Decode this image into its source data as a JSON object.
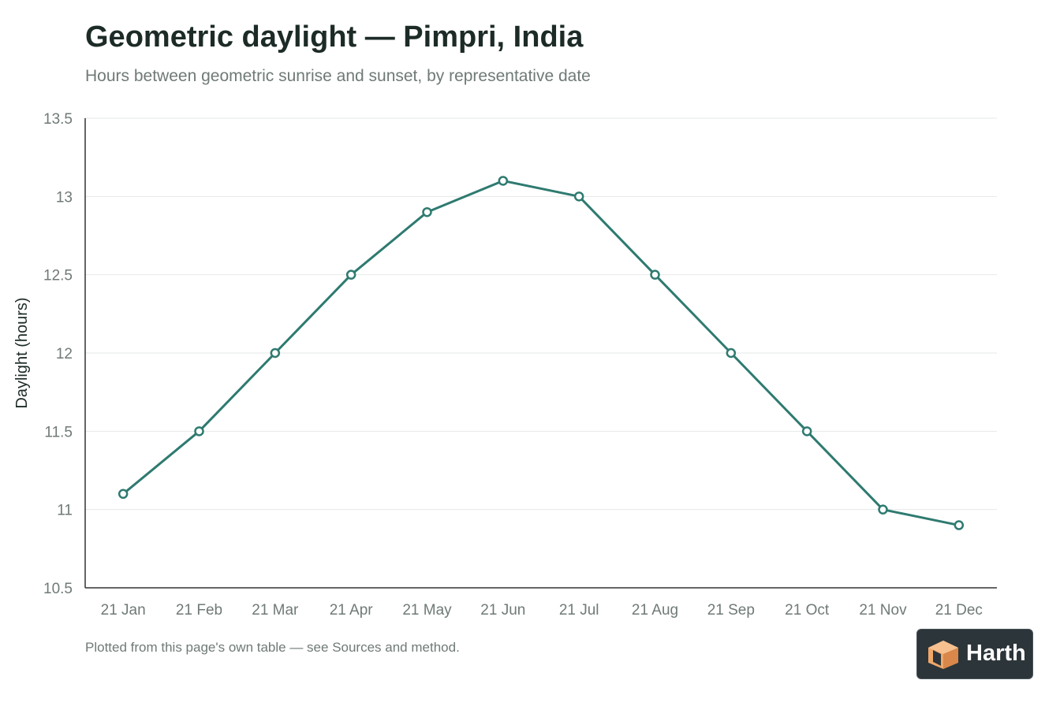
{
  "header": {
    "title": "Geometric daylight — Pimpri, India",
    "subtitle": "Hours between geometric sunrise and sunset, by representative date"
  },
  "footnote": "Plotted from this page's own table — see Sources and method.",
  "logo": {
    "text": "Harth"
  },
  "colors": {
    "line": "#2e7a70",
    "text_dark": "#1c2b27",
    "text_muted": "#6f7a77",
    "grid": "#e6e8e7",
    "axis": "#333333",
    "logo_bg": "#2c353a",
    "logo_mark": "#f0a86a"
  },
  "chart_data": {
    "type": "line",
    "categories": [
      "21 Jan",
      "21 Feb",
      "21 Mar",
      "21 Apr",
      "21 May",
      "21 Jun",
      "21 Jul",
      "21 Aug",
      "21 Sep",
      "21 Oct",
      "21 Nov",
      "21 Dec"
    ],
    "values": [
      11.1,
      11.5,
      12.0,
      12.5,
      12.9,
      13.1,
      13.0,
      12.5,
      12.0,
      11.5,
      11.0,
      10.9
    ],
    "ylabel": "Daylight (hours)",
    "xlabel": "",
    "ylim": [
      10.5,
      13.5
    ],
    "yticks": [
      "10.5",
      "11",
      "11.5",
      "12",
      "12.5",
      "13",
      "13.5"
    ],
    "grid": true,
    "markers": "hollow-circle"
  }
}
